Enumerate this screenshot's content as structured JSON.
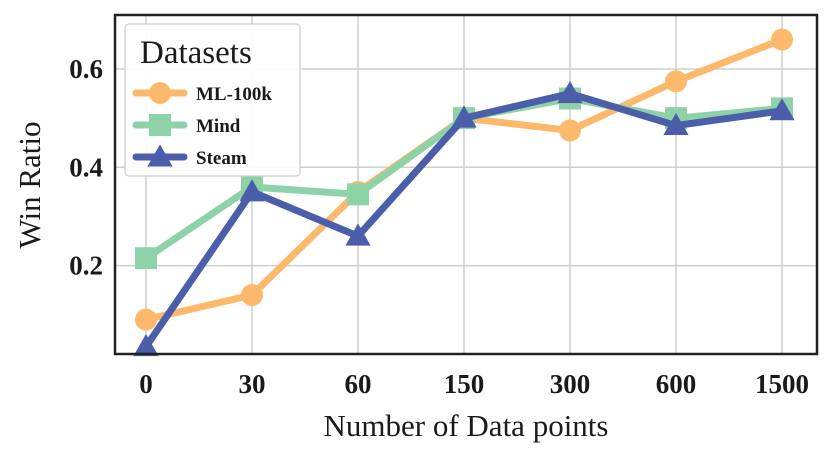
{
  "chart_data": {
    "type": "line",
    "title": "",
    "xlabel": "Number of Data points",
    "ylabel": "Win Ratio",
    "categories": [
      "0",
      "30",
      "60",
      "150",
      "300",
      "600",
      "1500"
    ],
    "ylim": [
      0.02,
      0.71
    ],
    "yticks": [
      "0.2",
      "0.4",
      "0.6"
    ],
    "grid": true,
    "legend": {
      "title": "Datasets",
      "position": "top-left"
    },
    "series": [
      {
        "name": "ML-100k",
        "color": "#FDB96B",
        "marker": "circle",
        "values": [
          0.09,
          0.14,
          0.35,
          0.5,
          0.475,
          0.575,
          0.66
        ]
      },
      {
        "name": "Mind",
        "color": "#8DD3A7",
        "marker": "square",
        "values": [
          0.215,
          0.36,
          0.345,
          0.5,
          0.54,
          0.5,
          0.52
        ]
      },
      {
        "name": "Steam",
        "color": "#4B5EAA",
        "marker": "triangle",
        "values": [
          0.035,
          0.35,
          0.26,
          0.5,
          0.55,
          0.485,
          0.515
        ]
      }
    ]
  }
}
